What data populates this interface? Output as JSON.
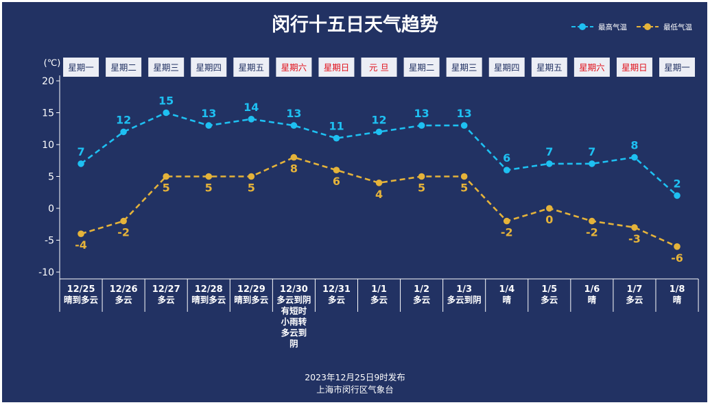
{
  "title": "闵行十五日天气趋势",
  "footer": {
    "line1": "2023年12月25日9时发布",
    "line2": "上海市闵行区气象台"
  },
  "colors": {
    "background": "#223263",
    "high": "#1ec0f2",
    "low": "#e5b33a",
    "weekday_text": "#223263",
    "weekend_text": "#e0101a",
    "box_fill": "#eceef5"
  },
  "chart_data": {
    "type": "line",
    "unit_label": "(℃)",
    "ylim": [
      -10,
      20
    ],
    "yticks": [
      20,
      15,
      10,
      5,
      0,
      -5,
      -10
    ],
    "legend_position": "top-right",
    "weekdays": [
      {
        "label": "星期一",
        "holiday": false
      },
      {
        "label": "星期二",
        "holiday": false
      },
      {
        "label": "星期三",
        "holiday": false
      },
      {
        "label": "星期四",
        "holiday": false
      },
      {
        "label": "星期五",
        "holiday": false
      },
      {
        "label": "星期六",
        "holiday": true
      },
      {
        "label": "星期日",
        "holiday": true
      },
      {
        "label": "元 旦",
        "holiday": true
      },
      {
        "label": "星期二",
        "holiday": false
      },
      {
        "label": "星期三",
        "holiday": false
      },
      {
        "label": "星期四",
        "holiday": false
      },
      {
        "label": "星期五",
        "holiday": false
      },
      {
        "label": "星期六",
        "holiday": true
      },
      {
        "label": "星期日",
        "holiday": true
      },
      {
        "label": "星期一",
        "holiday": false
      }
    ],
    "categories": [
      "12/25",
      "12/26",
      "12/27",
      "12/28",
      "12/29",
      "12/30",
      "12/31",
      "1/1",
      "1/2",
      "1/3",
      "1/4",
      "1/5",
      "1/6",
      "1/7",
      "1/8"
    ],
    "weather": [
      [
        "晴到多云"
      ],
      [
        "多云"
      ],
      [
        "多云"
      ],
      [
        "晴到多云"
      ],
      [
        "晴到多云"
      ],
      [
        "多云到阴",
        "有短时",
        "小雨转",
        "多云到",
        "阴"
      ],
      [
        "多云"
      ],
      [
        "多云"
      ],
      [
        "多云"
      ],
      [
        "多云到阴"
      ],
      [
        "晴"
      ],
      [
        "多云"
      ],
      [
        "晴"
      ],
      [
        "多云"
      ],
      [
        "晴"
      ]
    ],
    "series": [
      {
        "name": "最高气温",
        "values": [
          7,
          12,
          15,
          13,
          14,
          13,
          11,
          12,
          13,
          13,
          6,
          7,
          7,
          8,
          2
        ]
      },
      {
        "name": "最低气温",
        "values": [
          -4,
          -2,
          5,
          5,
          5,
          8,
          6,
          4,
          5,
          5,
          -2,
          0,
          -2,
          -3,
          -6
        ]
      }
    ]
  }
}
